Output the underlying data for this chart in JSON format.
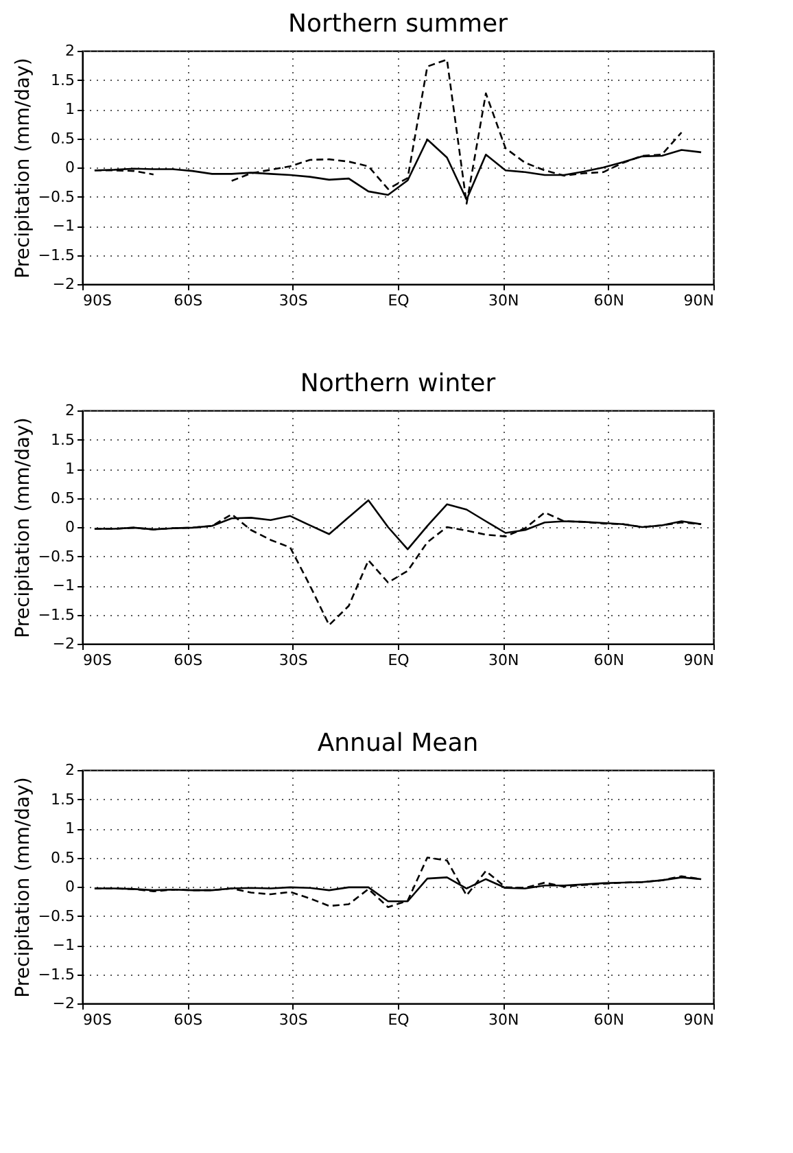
{
  "chart_data": [
    {
      "type": "line",
      "title": "Northern summer",
      "ylabel": "Precipitation (mm/day)",
      "x": [
        -86.5,
        -80.9,
        -75.3,
        -69.7,
        -64.2,
        -58.6,
        -53.0,
        -47.4,
        -41.9,
        -36.3,
        -30.7,
        -25.1,
        -19.6,
        -14.0,
        -8.4,
        -2.8,
        2.8,
        8.4,
        14.0,
        19.6,
        25.1,
        30.7,
        36.3,
        41.9,
        47.4,
        53.0,
        58.6,
        64.2,
        69.7,
        75.3,
        80.9,
        86.5
      ],
      "series": [
        {
          "color": "#000000",
          "line_style": "solid",
          "values": [
            -0.05,
            -0.04,
            -0.02,
            -0.03,
            -0.03,
            -0.06,
            -0.11,
            -0.11,
            -0.09,
            -0.11,
            -0.13,
            -0.16,
            -0.21,
            -0.19,
            -0.41,
            -0.47,
            -0.22,
            0.48,
            0.17,
            -0.55,
            0.22,
            -0.05,
            -0.08,
            -0.13,
            -0.13,
            -0.07,
            0.0,
            0.09,
            0.19,
            0.2,
            0.3,
            0.26
          ]
        },
        {
          "color": "#000000",
          "line_style": "dashed",
          "values": [
            -0.05,
            -0.05,
            -0.06,
            -0.12,
            null,
            null,
            null,
            -0.23,
            -0.1,
            -0.04,
            0.02,
            0.13,
            0.14,
            0.1,
            0.02,
            -0.37,
            -0.18,
            1.73,
            1.85,
            -0.62,
            1.27,
            0.33,
            0.08,
            -0.05,
            -0.14,
            -0.1,
            -0.08,
            0.08,
            0.2,
            0.22,
            0.6,
            null
          ]
        }
      ],
      "xlim": [
        -90,
        90
      ],
      "xticks": [
        {
          "value": -90,
          "label": "90S"
        },
        {
          "value": -60,
          "label": "60S"
        },
        {
          "value": -30,
          "label": "30S"
        },
        {
          "value": 0,
          "label": "EQ"
        },
        {
          "value": 30,
          "label": "30N"
        },
        {
          "value": 60,
          "label": "60N"
        },
        {
          "value": 90,
          "label": "90N"
        }
      ],
      "ylim": [
        -2,
        2
      ],
      "yticks": [
        -2,
        -1.5,
        -1,
        -0.5,
        0,
        0.5,
        1,
        1.5,
        2
      ],
      "grid": true,
      "legend": false
    },
    {
      "type": "line",
      "title": "Northern winter",
      "ylabel": "Precipitation (mm/day)",
      "x": [
        -86.5,
        -80.9,
        -75.3,
        -69.7,
        -64.2,
        -58.6,
        -53.0,
        -47.4,
        -41.9,
        -36.3,
        -30.7,
        -25.1,
        -19.6,
        -14.0,
        -8.4,
        -2.8,
        2.8,
        8.4,
        14.0,
        19.6,
        25.1,
        30.7,
        36.3,
        41.9,
        47.4,
        53.0,
        58.6,
        64.2,
        69.7,
        75.3,
        80.9,
        86.5
      ],
      "series": [
        {
          "color": "#000000",
          "line_style": "solid",
          "values": [
            -0.03,
            -0.03,
            -0.01,
            -0.04,
            -0.02,
            -0.01,
            0.02,
            0.15,
            0.16,
            0.12,
            0.19,
            0.03,
            -0.12,
            0.17,
            0.46,
            0.0,
            -0.38,
            0.02,
            0.39,
            0.3,
            0.1,
            -0.1,
            -0.05,
            0.08,
            0.1,
            0.09,
            0.07,
            0.05,
            0.0,
            0.03,
            0.1,
            0.05
          ]
        },
        {
          "color": "#000000",
          "line_style": "dashed",
          "values": [
            -0.03,
            -0.03,
            -0.01,
            -0.04,
            -0.02,
            -0.01,
            0.02,
            0.22,
            -0.05,
            -0.22,
            -0.35,
            -1.0,
            -1.68,
            -1.35,
            -0.57,
            -0.95,
            -0.75,
            -0.26,
            0.0,
            -0.06,
            -0.13,
            -0.16,
            -0.02,
            0.25,
            0.1,
            0.09,
            0.06,
            0.05,
            0.0,
            0.03,
            0.08,
            0.05
          ]
        }
      ],
      "xlim": [
        -90,
        90
      ],
      "xticks": [
        {
          "value": -90,
          "label": "90S"
        },
        {
          "value": -60,
          "label": "60S"
        },
        {
          "value": -30,
          "label": "30S"
        },
        {
          "value": 0,
          "label": "EQ"
        },
        {
          "value": 30,
          "label": "30N"
        },
        {
          "value": 60,
          "label": "60N"
        },
        {
          "value": 90,
          "label": "90N"
        }
      ],
      "ylim": [
        -2,
        2
      ],
      "yticks": [
        -2,
        -1.5,
        -1,
        -0.5,
        0,
        0.5,
        1,
        1.5,
        2
      ],
      "grid": true,
      "legend": false
    },
    {
      "type": "line",
      "title": "Annual Mean",
      "ylabel": "Precipitation (mm/day)",
      "x": [
        -86.5,
        -80.9,
        -75.3,
        -69.7,
        -64.2,
        -58.6,
        -53.0,
        -47.4,
        -41.9,
        -36.3,
        -30.7,
        -25.1,
        -19.6,
        -14.0,
        -8.4,
        -2.8,
        2.8,
        8.4,
        14.0,
        19.6,
        25.1,
        30.7,
        36.3,
        41.9,
        47.4,
        53.0,
        58.6,
        64.2,
        69.7,
        75.3,
        80.9,
        86.5
      ],
      "series": [
        {
          "color": "#000000",
          "line_style": "solid",
          "values": [
            -0.03,
            -0.03,
            -0.04,
            -0.06,
            -0.05,
            -0.06,
            -0.06,
            -0.03,
            -0.02,
            -0.03,
            -0.01,
            -0.02,
            -0.06,
            -0.01,
            -0.01,
            -0.25,
            -0.25,
            0.14,
            0.16,
            -0.03,
            0.13,
            -0.02,
            -0.03,
            0.02,
            0.02,
            0.04,
            0.06,
            0.07,
            0.08,
            0.11,
            0.16,
            0.13
          ]
        },
        {
          "color": "#000000",
          "line_style": "dashed",
          "values": [
            -0.03,
            -0.03,
            -0.04,
            -0.08,
            -0.05,
            -0.06,
            -0.06,
            -0.03,
            -0.1,
            -0.13,
            -0.09,
            -0.2,
            -0.33,
            -0.3,
            -0.04,
            -0.35,
            -0.24,
            0.5,
            0.45,
            -0.15,
            0.27,
            -0.01,
            -0.02,
            0.07,
            0.0,
            0.03,
            0.05,
            0.07,
            0.08,
            0.11,
            0.18,
            0.13
          ]
        }
      ],
      "xlim": [
        -90,
        90
      ],
      "xticks": [
        {
          "value": -90,
          "label": "90S"
        },
        {
          "value": -60,
          "label": "60S"
        },
        {
          "value": -30,
          "label": "30S"
        },
        {
          "value": 0,
          "label": "EQ"
        },
        {
          "value": 30,
          "label": "30N"
        },
        {
          "value": 60,
          "label": "60N"
        },
        {
          "value": 90,
          "label": "90N"
        }
      ],
      "ylim": [
        -2,
        2
      ],
      "yticks": [
        -2,
        -1.5,
        -1,
        -0.5,
        0,
        0.5,
        1,
        1.5,
        2
      ],
      "grid": true,
      "legend": false
    }
  ]
}
